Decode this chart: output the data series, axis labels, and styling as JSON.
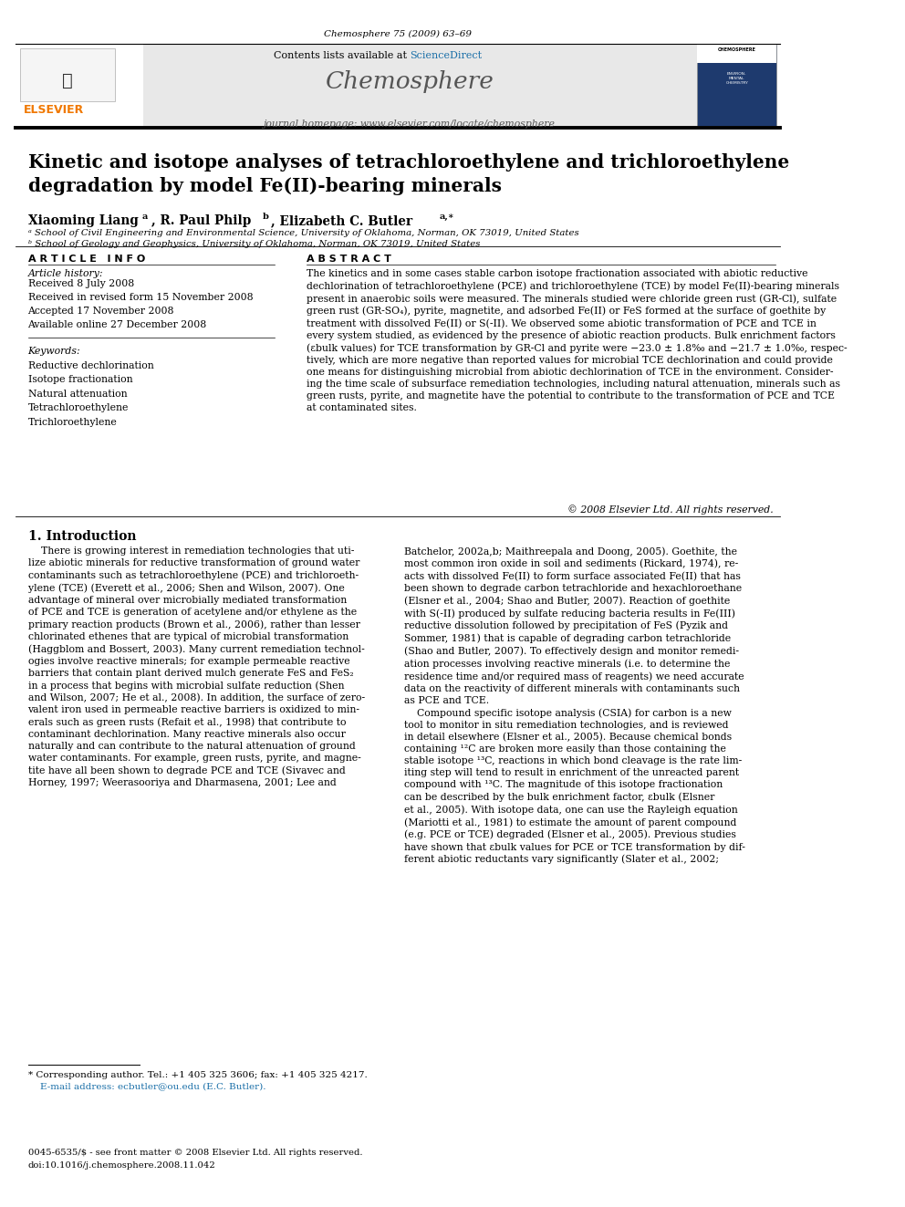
{
  "page_width": 9.92,
  "page_height": 13.23,
  "bg_color": "#ffffff",
  "journal_ref": "Chemosphere 75 (2009) 63–69",
  "header_bg": "#e8e8e8",
  "elsevier_color": "#f07800",
  "sciencedirect_color": "#1a6fa8",
  "journal_name": "Chemosphere",
  "journal_homepage": "journal homepage: www.elsevier.com/locate/chemosphere",
  "contents_line": "Contents lists available at ScienceDirect",
  "title": "Kinetic and isotope analyses of tetrachloroethylene and trichloroethylene\ndegradation by model Fe(II)-bearing minerals",
  "history_lines": [
    "Received 8 July 2008",
    "Received in revised form 15 November 2008",
    "Accepted 17 November 2008",
    "Available online 27 December 2008"
  ],
  "keywords": [
    "Reductive dechlorination",
    "Isotope fractionation",
    "Natural attenuation",
    "Tetrachloroethylene",
    "Trichloroethylene"
  ],
  "abstract_text": "The kinetics and in some cases stable carbon isotope fractionation associated with abiotic reductive\ndechlorination of tetrachloroethylene (PCE) and trichloroethylene (TCE) by model Fe(II)-bearing minerals\npresent in anaerobic soils were measured. The minerals studied were chloride green rust (GR-Cl), sulfate\ngreen rust (GR-SO₄), pyrite, magnetite, and adsorbed Fe(II) or FeS formed at the surface of goethite by\ntreatment with dissolved Fe(II) or S(-II). We observed some abiotic transformation of PCE and TCE in\nevery system studied, as evidenced by the presence of abiotic reaction products. Bulk enrichment factors\n(εbulk values) for TCE transformation by GR-Cl and pyrite were −23.0 ± 1.8‰ and −21.7 ± 1.0‰, respec-\ntively, which are more negative than reported values for microbial TCE dechlorination and could provide\none means for distinguishing microbial from abiotic dechlorination of TCE in the environment. Consider-\ning the time scale of subsurface remediation technologies, including natural attenuation, minerals such as\ngreen rusts, pyrite, and magnetite have the potential to contribute to the transformation of PCE and TCE\nat contaminated sites.",
  "copyright_line": "© 2008 Elsevier Ltd. All rights reserved.",
  "intro_col1": "    There is growing interest in remediation technologies that uti-\nlize abiotic minerals for reductive transformation of ground water\ncontaminants such as tetrachloroethylene (PCE) and trichloroeth-\nylene (TCE) (Everett et al., 2006; Shen and Wilson, 2007). One\nadvantage of mineral over microbially mediated transformation\nof PCE and TCE is generation of acetylene and/or ethylene as the\nprimary reaction products (Brown et al., 2006), rather than lesser\nchlorinated ethenes that are typical of microbial transformation\n(Haggblom and Bossert, 2003). Many current remediation technol-\nogies involve reactive minerals; for example permeable reactive\nbarriers that contain plant derived mulch generate FeS and FeS₂\nin a process that begins with microbial sulfate reduction (Shen\nand Wilson, 2007; He et al., 2008). In addition, the surface of zero-\nvalent iron used in permeable reactive barriers is oxidized to min-\nerals such as green rusts (Refait et al., 1998) that contribute to\ncontaminant dechlorination. Many reactive minerals also occur\nnaturally and can contribute to the natural attenuation of ground\nwater contaminants. For example, green rusts, pyrite, and magne-\ntite have all been shown to degrade PCE and TCE (Sivavec and\nHorney, 1997; Weerasooriya and Dharmasena, 2001; Lee and",
  "intro_col2": "Batchelor, 2002a,b; Maithreepala and Doong, 2005). Goethite, the\nmost common iron oxide in soil and sediments (Rickard, 1974), re-\nacts with dissolved Fe(II) to form surface associated Fe(II) that has\nbeen shown to degrade carbon tetrachloride and hexachloroethane\n(Elsner et al., 2004; Shao and Butler, 2007). Reaction of goethite\nwith S(-II) produced by sulfate reducing bacteria results in Fe(III)\nreductive dissolution followed by precipitation of FeS (Pyzik and\nSommer, 1981) that is capable of degrading carbon tetrachloride\n(Shao and Butler, 2007). To effectively design and monitor remedi-\nation processes involving reactive minerals (i.e. to determine the\nresidence time and/or required mass of reagents) we need accurate\ndata on the reactivity of different minerals with contaminants such\nas PCE and TCE.\n    Compound specific isotope analysis (CSIA) for carbon is a new\ntool to monitor in situ remediation technologies, and is reviewed\nin detail elsewhere (Elsner et al., 2005). Because chemical bonds\ncontaining ¹²C are broken more easily than those containing the\nstable isotope ¹³C, reactions in which bond cleavage is the rate lim-\niting step will tend to result in enrichment of the unreacted parent\ncompound with ¹³C. The magnitude of this isotope fractionation\ncan be described by the bulk enrichment factor, εbulk (Elsner\net al., 2005). With isotope data, one can use the Rayleigh equation\n(Mariotti et al., 1981) to estimate the amount of parent compound\n(e.g. PCE or TCE) degraded (Elsner et al., 2005). Previous studies\nhave shown that εbulk values for PCE or TCE transformation by dif-\nferent abiotic reductants vary significantly (Slater et al., 2002;",
  "footnote_star": "* Corresponding author. Tel.: +1 405 325 3606; fax: +1 405 325 4217.",
  "footnote_email": "    E-mail address: ecbutler@ou.edu (E.C. Butler).",
  "footer_line1": "0045-6535/$ - see front matter © 2008 Elsevier Ltd. All rights reserved.",
  "footer_line2": "doi:10.1016/j.chemosphere.2008.11.042",
  "link_color": "#1a6fa8",
  "text_color": "#000000"
}
